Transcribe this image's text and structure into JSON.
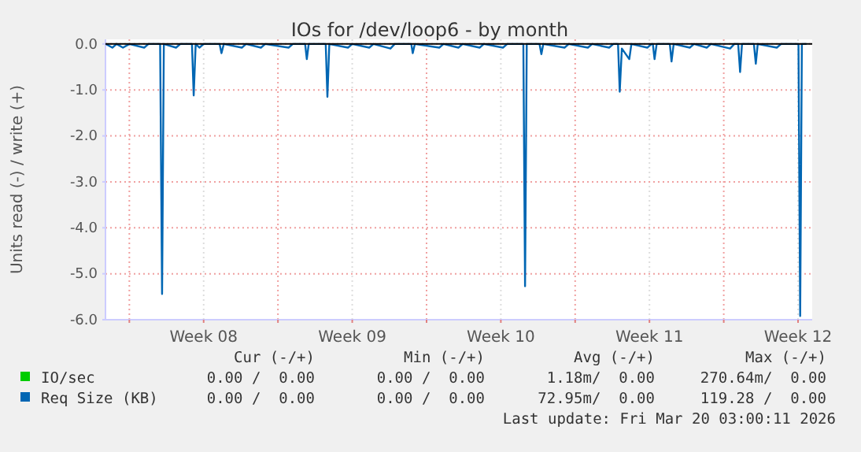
{
  "chart_data": {
    "type": "line",
    "title": "IOs for /dev/loop6 - by month",
    "ylabel": "Units read (-) / write (+)",
    "xlim": [
      "2026-02-14T21:00",
      "2026-03-20T04:00"
    ],
    "xticks": [
      {
        "value": "2026-02-16T00:00",
        "label": null
      },
      {
        "value": "2026-02-19T12:00",
        "label": "Week 08"
      },
      {
        "value": "2026-02-23T00:00",
        "label": null
      },
      {
        "value": "2026-02-26T12:00",
        "label": "Week 09"
      },
      {
        "value": "2026-03-02T00:00",
        "label": null
      },
      {
        "value": "2026-03-05T12:00",
        "label": "Week 10"
      },
      {
        "value": "2026-03-09T00:00",
        "label": null
      },
      {
        "value": "2026-03-12T12:00",
        "label": "Week 11"
      },
      {
        "value": "2026-03-16T00:00",
        "label": null
      },
      {
        "value": "2026-03-19T12:00",
        "label": "Week 12"
      }
    ],
    "ylim": [
      -6,
      0.1
    ],
    "yticks": [
      {
        "value": -6,
        "label": "-6.0"
      },
      {
        "value": -5,
        "label": "-5.0"
      },
      {
        "value": -4,
        "label": "-4.0"
      },
      {
        "value": -3,
        "label": "-3.0"
      },
      {
        "value": -2,
        "label": "-2.0"
      },
      {
        "value": -1,
        "label": "-1.0"
      },
      {
        "value": 0,
        "label": "0.0"
      }
    ],
    "grid": true,
    "legend": "bottom",
    "line_style": "solid",
    "ref_lines": [
      {
        "axis": "y",
        "value": 0,
        "color": "#000000"
      }
    ],
    "series": [
      {
        "name": "IO/sec",
        "color": "#00cc00"
      },
      {
        "name": "Req Size (KB)",
        "color": "#0066b3",
        "x": [
          "2026-02-14T21:36",
          "2026-02-15T04:48",
          "2026-02-15T09:36",
          "2026-02-15T16:48",
          "2026-02-16T00:00",
          "2026-02-16T16:48",
          "2026-02-16T21:36",
          "2026-02-17T10:48",
          "2026-02-17T13:00",
          "2026-02-17T15:00",
          "2026-02-18T04:48",
          "2026-02-18T09:36",
          "2026-02-18T22:48",
          "2026-02-19T00:45",
          "2026-02-19T03:00",
          "2026-02-19T07:12",
          "2026-02-19T12:00",
          "2026-02-20T06:00",
          "2026-02-20T08:10",
          "2026-02-20T10:48",
          "2026-02-21T07:12",
          "2026-02-21T12:00",
          "2026-02-22T04:48",
          "2026-02-22T09:36",
          "2026-02-23T12:00",
          "2026-02-23T16:48",
          "2026-02-24T06:43",
          "2026-02-24T08:38",
          "2026-02-24T10:48",
          "2026-02-25T06:00",
          "2026-02-25T07:55",
          "2026-02-25T10:05",
          "2026-02-26T07:12",
          "2026-02-26T12:00",
          "2026-02-27T07:12",
          "2026-02-27T12:00",
          "2026-02-28T07:12",
          "2026-02-28T12:00",
          "2026-03-01T06:43",
          "2026-03-01T08:24",
          "2026-03-01T10:48",
          "2026-03-02T14:24",
          "2026-03-02T19:12",
          "2026-03-03T12:00",
          "2026-03-03T16:48",
          "2026-03-04T12:00",
          "2026-03-04T16:48",
          "2026-03-05T14:24",
          "2026-03-05T19:12",
          "2026-03-06T13:26",
          "2026-03-06T15:22",
          "2026-03-06T17:17",
          "2026-03-07T07:41",
          "2026-03-07T09:50",
          "2026-03-07T12:00",
          "2026-03-08T12:00",
          "2026-03-08T16:48",
          "2026-03-09T14:24",
          "2026-03-09T19:12",
          "2026-03-10T14:24",
          "2026-03-10T19:12",
          "2026-03-11T00:29",
          "2026-03-11T02:24",
          "2026-03-11T04:48",
          "2026-03-11T13:12",
          "2026-03-11T15:36",
          "2026-03-12T09:36",
          "2026-03-12T14:24",
          "2026-03-12T15:50",
          "2026-03-12T17:46",
          "2026-03-12T20:10",
          "2026-03-13T11:02",
          "2026-03-13T12:58",
          "2026-03-13T15:22",
          "2026-03-14T09:36",
          "2026-03-14T14:24",
          "2026-03-15T04:48",
          "2026-03-15T09:36",
          "2026-03-16T07:12",
          "2026-03-16T12:00",
          "2026-03-16T16:19",
          "2026-03-16T18:29",
          "2026-03-16T20:38",
          "2026-03-17T10:05",
          "2026-03-17T12:14",
          "2026-03-17T14:24",
          "2026-03-18T12:00",
          "2026-03-18T16:48",
          "2026-03-19T12:29",
          "2026-03-19T14:24",
          "2026-03-19T16:19",
          "2026-03-19T21:36"
        ],
        "values": [
          0,
          -0.08,
          0,
          -0.08,
          0,
          -0.08,
          0,
          0,
          -5.44,
          0,
          -0.08,
          0,
          0,
          -1.12,
          0,
          -0.08,
          0,
          0,
          -0.2,
          0,
          -0.08,
          0,
          -0.08,
          0,
          -0.08,
          0,
          0,
          -0.33,
          0,
          0,
          -1.15,
          0,
          -0.08,
          0,
          -0.08,
          0,
          -0.1,
          0,
          0,
          -0.2,
          0,
          -0.08,
          0,
          -0.08,
          0,
          -0.08,
          0,
          -0.08,
          0,
          0,
          -5.27,
          0,
          0,
          -0.22,
          0,
          -0.08,
          0,
          -0.08,
          0,
          -0.08,
          0,
          0,
          -1.04,
          -0.1,
          -0.33,
          0,
          -0.08,
          0,
          0,
          -0.33,
          0,
          0,
          -0.38,
          0,
          -0.08,
          0,
          -0.08,
          0,
          -0.1,
          0,
          0,
          -0.61,
          0,
          0,
          -0.43,
          0,
          -0.08,
          0,
          0,
          -5.92,
          0,
          0
        ]
      }
    ],
    "annotations": [
      "Cur (-/+)",
      "Min (-/+)",
      "Avg (-/+)",
      "Max (-/+)",
      "0.00 /  0.00",
      "0.00 /  0.00",
      "1.18m/  0.00",
      "270.64m/  0.00",
      "0.00 /  0.00",
      "0.00 /  0.00",
      "72.95m/  0.00",
      "119.28 /  0.00",
      "Last update: Fri Mar 20 03:00:11 2026"
    ]
  }
}
